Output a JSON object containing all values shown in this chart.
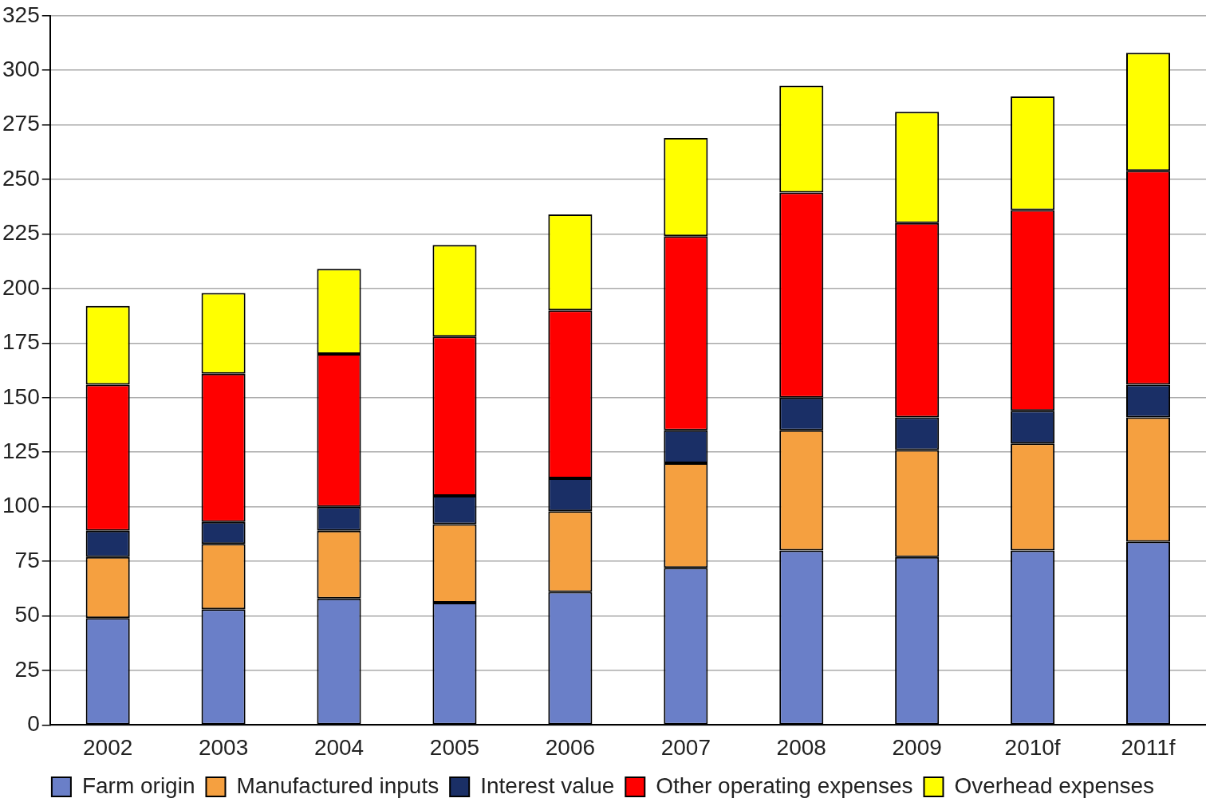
{
  "chart_data": {
    "type": "bar",
    "stacked": true,
    "categories": [
      "2002",
      "2003",
      "2004",
      "2005",
      "2006",
      "2007",
      "2008",
      "2009",
      "2010f",
      "2011f"
    ],
    "series": [
      {
        "name": "Farm origin",
        "color": "#6a7fc8",
        "values": [
          49,
          53,
          58,
          56,
          61,
          72,
          80,
          77,
          80,
          84
        ]
      },
      {
        "name": "Manufactured inputs",
        "color": "#f5a040",
        "values": [
          28,
          30,
          31,
          36,
          37,
          48,
          55,
          49,
          49,
          57
        ]
      },
      {
        "name": "Interest value",
        "color": "#1a2f66",
        "values": [
          12,
          10,
          11,
          13,
          15,
          15,
          15,
          15,
          15,
          15
        ]
      },
      {
        "name": "Other operating expenses",
        "color": "#ff0000",
        "values": [
          67,
          68,
          70,
          73,
          77,
          89,
          94,
          89,
          92,
          98
        ]
      },
      {
        "name": "Overhead expenses",
        "color": "#ffff00",
        "values": [
          36,
          37,
          39,
          42,
          44,
          45,
          49,
          51,
          52,
          54
        ]
      }
    ],
    "ylim": [
      0,
      325
    ],
    "yticks": [
      0,
      25,
      50,
      75,
      100,
      125,
      150,
      175,
      200,
      225,
      250,
      275,
      300,
      325
    ],
    "grid": "y",
    "legend": "bottom"
  }
}
